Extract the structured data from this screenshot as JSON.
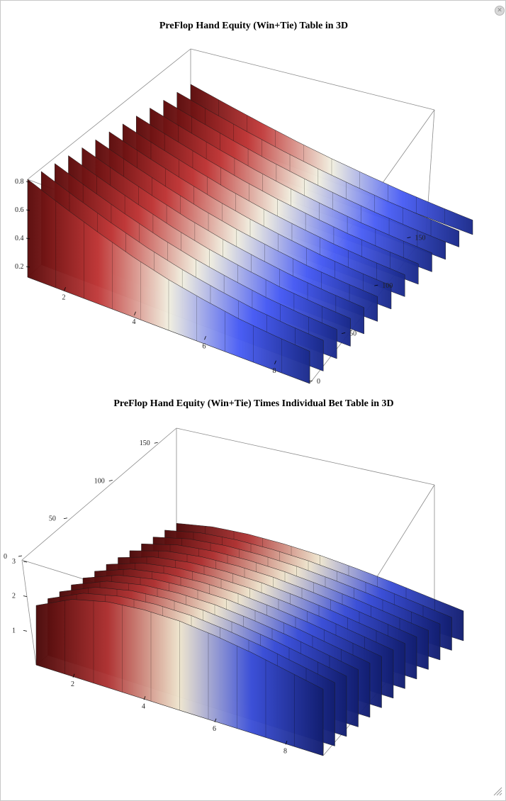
{
  "window": {
    "close_icon": "close-circle-icon",
    "resize_icon": "resize-grip-icon"
  },
  "chart_data": [
    {
      "type": "surface3d",
      "title": "PreFlop Hand Equity (Win+Tie) Table in 3D",
      "x_ticks": [
        2,
        4,
        6,
        8
      ],
      "y_ticks": [
        0,
        50,
        100,
        150
      ],
      "z_ticks": [
        0.2,
        0.4,
        0.6,
        0.8
      ],
      "x_range": [
        1,
        9
      ],
      "y_range": [
        0,
        169
      ],
      "z_range": [
        0,
        0.85
      ],
      "colormap": [
        "#5a0a0a",
        "#c13a3a",
        "#f2f0e0",
        "#4a5ef5",
        "#1a2a8a"
      ],
      "ridge_count": 13,
      "surface_z_at_x": [
        0.85,
        0.73,
        0.62,
        0.52,
        0.44,
        0.38,
        0.33,
        0.3,
        0.28
      ]
    },
    {
      "type": "surface3d",
      "title": "PreFlop Hand Equity (Win+Tie) Times Individual Bet Table in 3D",
      "x_ticks": [
        2,
        4,
        6,
        8
      ],
      "y_ticks": [
        0,
        50,
        100,
        150
      ],
      "z_ticks": [
        1,
        2,
        3
      ],
      "x_range": [
        1,
        9
      ],
      "y_range": [
        0,
        169
      ],
      "z_range": [
        0,
        3
      ],
      "colormap": [
        "#4a0808",
        "#b03535",
        "#efe6cf",
        "#3c50d8",
        "#121e70"
      ],
      "ridge_count": 13,
      "surface_z_at_x": [
        1.7,
        2.2,
        2.45,
        2.55,
        2.55,
        2.45,
        2.3,
        2.1,
        1.9
      ]
    }
  ]
}
